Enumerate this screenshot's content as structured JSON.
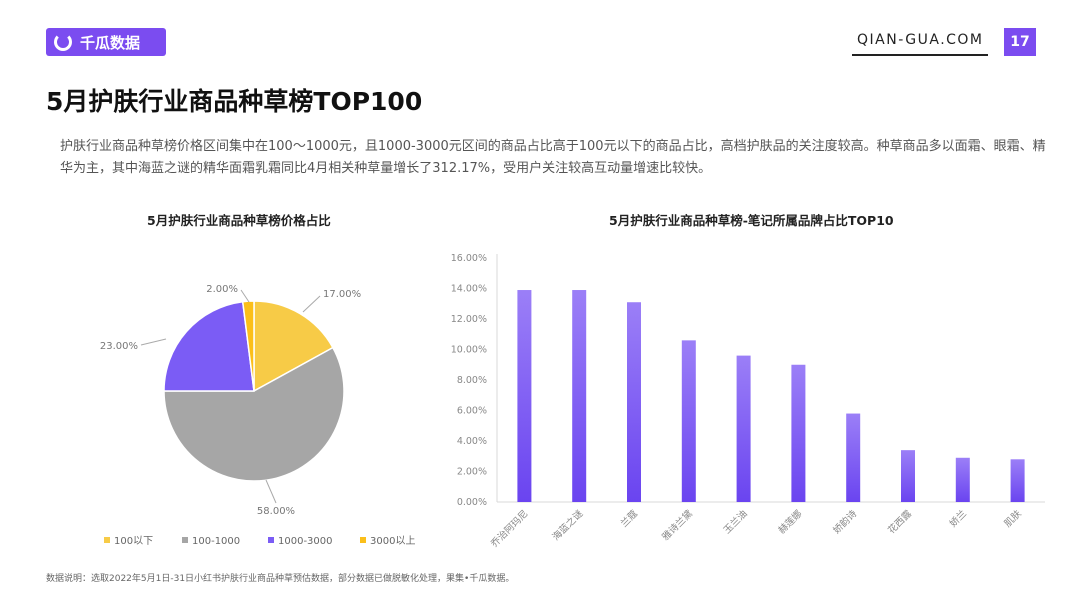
{
  "header": {
    "logo_text": "千瓜数据",
    "site": "QIAN-GUA.COM",
    "page_number": "17"
  },
  "title": "5月护肤行业商品种草榜TOP100",
  "description": "护肤行业商品种草榜价格区间集中在100～1000元，且1000-3000元区间的商品占比高于100元以下的商品占比，高档护肤品的关注度较高。种草商品多以面霜、眼霜、精华为主，其中海蓝之谜的精华面霜乳霜同比4月相关种草量增长了312.17%，受用户关注较高互动量增速比较快。",
  "footnote": "数据说明：选取2022年5月1日-31日小红书护肤行业商品种草预估数据，部分数据已做脱敏化处理，果集•千瓜数据。",
  "colors": {
    "accent": "#7b4cf0",
    "yellow": "#f7cb47",
    "gray": "#a6a6a6",
    "purple": "#7b5cf5",
    "orange": "#fbbf1a"
  },
  "chart_data": [
    {
      "type": "pie",
      "title": "5月护肤行业商品种草榜价格占比",
      "categories": [
        "100以下",
        "100-1000",
        "1000-3000",
        "3000以上"
      ],
      "values": [
        17.0,
        58.0,
        23.0,
        2.0
      ],
      "labels": [
        "17.00%",
        "58.00%",
        "23.00%",
        "2.00%"
      ],
      "colors": [
        "#f7cb47",
        "#a6a6a6",
        "#7b5cf5",
        "#fbbf1a"
      ],
      "legend": "bottom"
    },
    {
      "type": "bar",
      "title": "5月护肤行业商品种草榜-笔记所属品牌占比TOP10",
      "categories": [
        "乔治阿玛尼",
        "海蓝之谜",
        "兰蔻",
        "雅诗兰黛",
        "玉兰油",
        "赫莲娜",
        "娇韵诗",
        "花西露",
        "娇兰",
        "肌肤"
      ],
      "values": [
        13.9,
        13.9,
        13.1,
        10.6,
        9.6,
        9.0,
        5.8,
        3.4,
        2.9,
        2.8
      ],
      "ylim": [
        0,
        16
      ],
      "yticks": [
        "0.00%",
        "2.00%",
        "4.00%",
        "6.00%",
        "8.00%",
        "10.00%",
        "12.00%",
        "14.00%",
        "16.00%"
      ],
      "color": "#7b5cf5",
      "grid": false
    }
  ]
}
